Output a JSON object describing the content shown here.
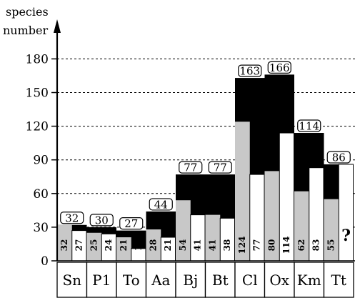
{
  "chart_data": {
    "type": "bar",
    "ylabel_line1": "species",
    "ylabel_line2": "number",
    "ylim": [
      0,
      195
    ],
    "yticks": [
      0,
      30,
      60,
      90,
      120,
      150,
      180
    ],
    "grid": "dashed-horizontal",
    "categories": [
      "Sn",
      "P1",
      "To",
      "Aa",
      "Bj",
      "Bt",
      "Cl",
      "Ox",
      "Km",
      "Tt"
    ],
    "totals": [
      32,
      30,
      27,
      44,
      77,
      77,
      163,
      166,
      114,
      86
    ],
    "pairs_values": [
      [
        32,
        27
      ],
      [
        25,
        24
      ],
      [
        21,
        11
      ],
      [
        28,
        21
      ],
      [
        54,
        41
      ],
      [
        41,
        38
      ],
      [
        124,
        77
      ],
      [
        80,
        114
      ],
      [
        62,
        83
      ],
      [
        55,
        null
      ]
    ],
    "pairs_labels": [
      [
        "32",
        "27"
      ],
      [
        "25",
        "24"
      ],
      [
        "21",
        "11"
      ],
      [
        "28",
        "21"
      ],
      [
        "54",
        "41"
      ],
      [
        "41",
        "38"
      ],
      [
        "124",
        "77"
      ],
      [
        "80",
        "114"
      ],
      [
        "62",
        "83"
      ],
      [
        "55",
        "?"
      ]
    ],
    "unknown_value_bar_height": 86,
    "colors": {
      "first": "#c8c8c8",
      "second": "#ffffff",
      "total": "#000000"
    }
  }
}
